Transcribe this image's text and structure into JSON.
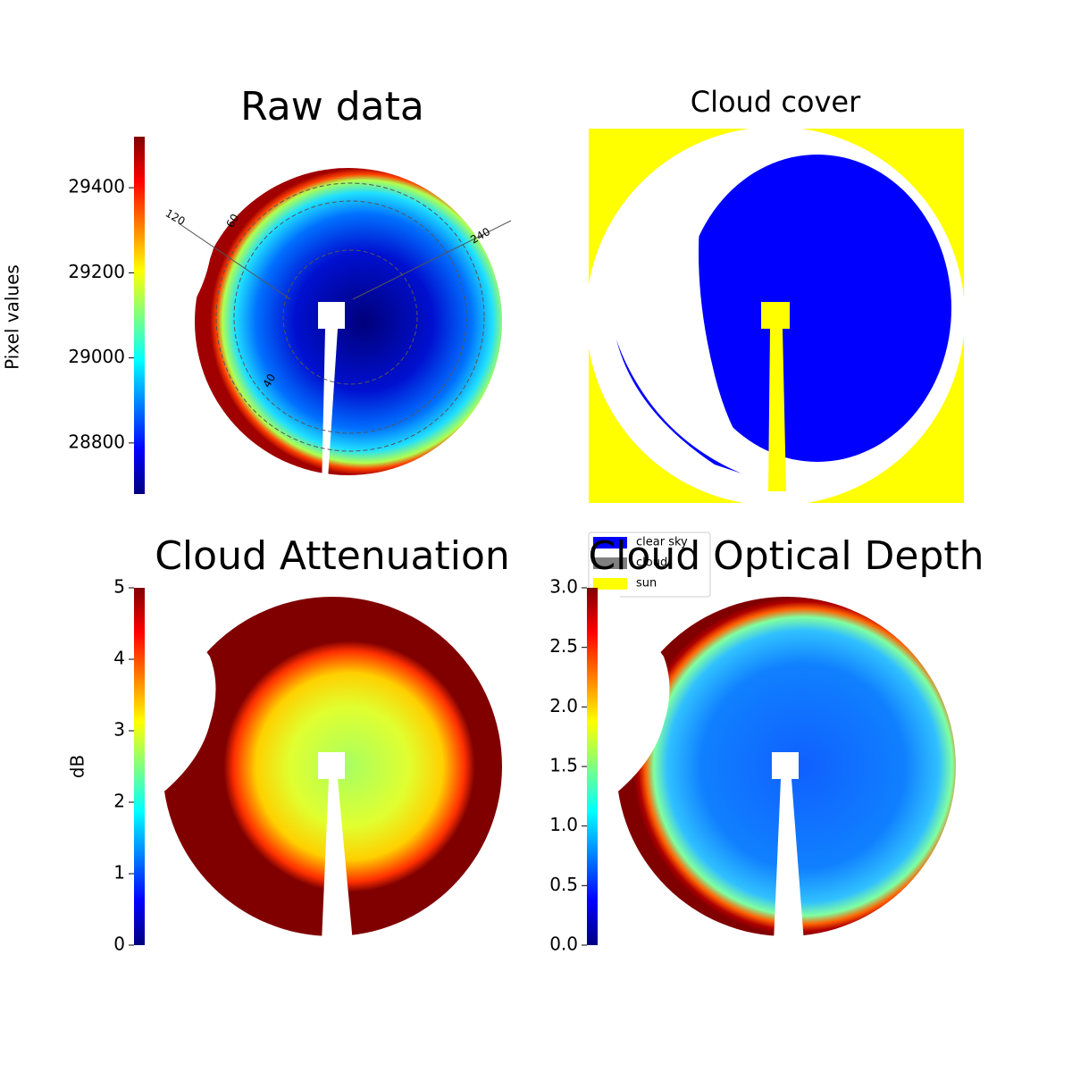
{
  "chart_data": [
    {
      "type": "image",
      "title": "Raw data",
      "colorbar_label": "Pixel values",
      "clim": [
        28680,
        29520
      ],
      "cticks": [
        28800,
        29000,
        29200,
        29400
      ],
      "annotations": [
        "120",
        "60",
        "240",
        "40"
      ]
    },
    {
      "type": "image",
      "title": "Cloud cover",
      "series": [
        {
          "name": "clear sky",
          "color": "#0000ff"
        },
        {
          "name": "cloud",
          "color": "#808080"
        },
        {
          "name": "sun",
          "color": "#ffff00"
        }
      ]
    },
    {
      "type": "image",
      "title": "Cloud Attenuation",
      "colorbar_label": "dB",
      "clim": [
        0,
        5
      ],
      "cticks": [
        0,
        1,
        2,
        3,
        4,
        5
      ]
    },
    {
      "type": "image",
      "title": "Cloud Optical Depth",
      "clim": [
        0,
        3
      ],
      "cticks": [
        {
          "value": 0,
          "label": "0.0"
        },
        0.5,
        {
          "value": 1,
          "label": "1.0"
        },
        1.5,
        {
          "value": 2,
          "label": "2.0"
        },
        2.5,
        {
          "value": 3,
          "label": "3.0"
        }
      ]
    }
  ]
}
